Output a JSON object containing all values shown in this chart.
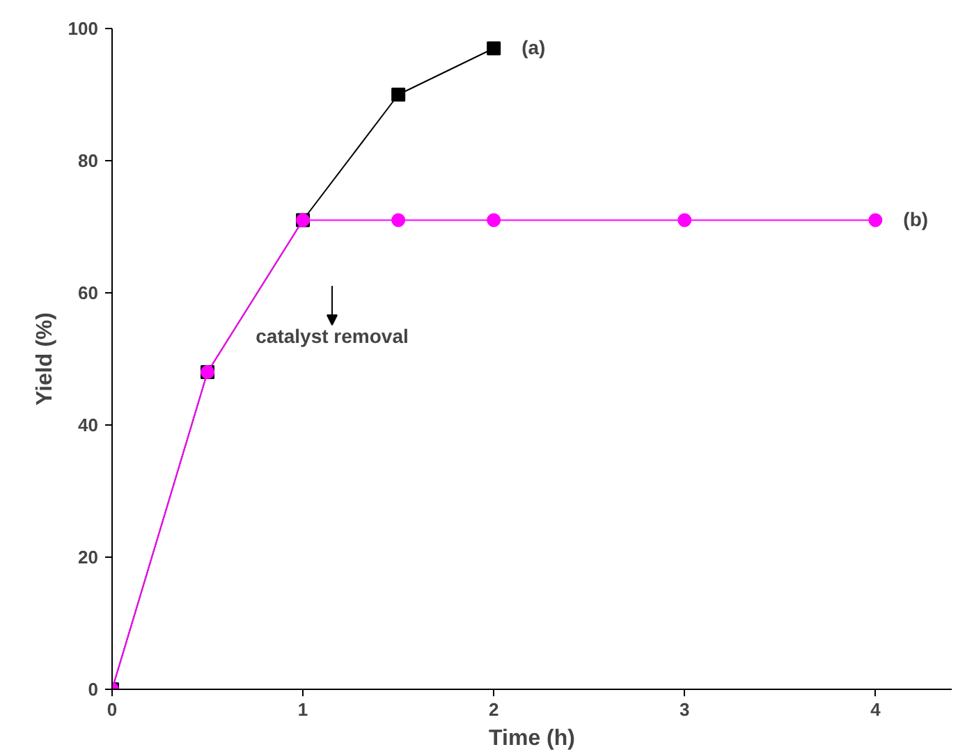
{
  "chart_data": {
    "type": "line",
    "xlabel": "Time (h)",
    "ylabel": "Yield (%)",
    "xlim": [
      0,
      4.4
    ],
    "ylim": [
      0,
      100
    ],
    "xticks": [
      0,
      1,
      2,
      3,
      4
    ],
    "yticks": [
      0,
      20,
      40,
      60,
      80,
      100
    ],
    "grid": false,
    "series": [
      {
        "name": "(a)",
        "color": "#000000",
        "marker": "square",
        "x": [
          0,
          0.5,
          1,
          1.5,
          2
        ],
        "values": [
          0,
          48,
          71,
          90,
          97
        ]
      },
      {
        "name": "(b)",
        "color": "#ff00ff",
        "marker": "circle",
        "x": [
          0,
          0.5,
          1,
          1.5,
          2,
          3,
          4
        ],
        "values": [
          0,
          48,
          71,
          71,
          71,
          71,
          71
        ]
      }
    ],
    "annotations": [
      "catalyst removal"
    ]
  }
}
